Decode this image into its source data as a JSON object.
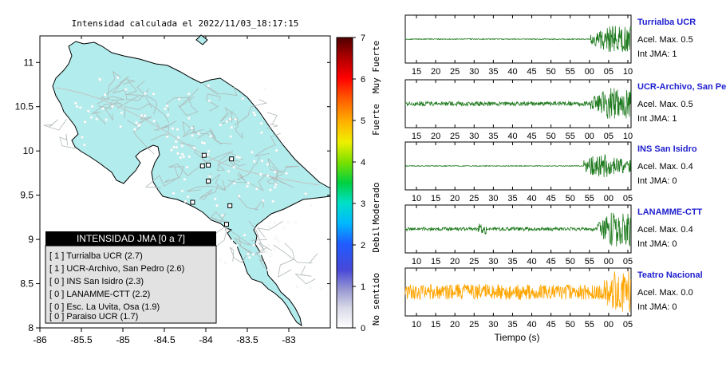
{
  "map": {
    "title": "Intensidad calculada el 2022/11/03_18:17:15",
    "x_ticks": [
      "-86",
      "-85.5",
      "-85",
      "-84.5",
      "-84",
      "-83.5",
      "-83"
    ],
    "y_ticks": [
      "11",
      "10.5",
      "10",
      "9.5",
      "9",
      "8.5",
      "8"
    ],
    "xlim": [
      -86.0,
      -82.5
    ],
    "ylim": [
      8.0,
      11.3
    ],
    "land_color": "#b2ecec",
    "station_markers": [
      {
        "lon": -84.02,
        "lat": 9.95
      },
      {
        "lon": -83.97,
        "lat": 9.84
      },
      {
        "lon": -84.04,
        "lat": 9.83
      },
      {
        "lon": -83.69,
        "lat": 9.91
      },
      {
        "lon": -83.97,
        "lat": 9.66
      },
      {
        "lon": -83.71,
        "lat": 9.38
      },
      {
        "lon": -83.75,
        "lat": 9.17
      },
      {
        "lon": -84.16,
        "lat": 9.42
      }
    ]
  },
  "legend_box": {
    "title": "INTENSIDAD JMA [0 a 7]",
    "items": [
      "[ 1 ] Turrialba UCR (2.7)",
      "[ 1 ] UCR-Archivo, San Pedro (2.6)",
      "[ 0 ] INS San Isidro (2.3)",
      "[ 0 ] LANAMME-CTT (2.2)",
      "[ 0 ] Esc. La Uvita, Osa (1.9)",
      "[ 0 ] Paraiso UCR (1.7)"
    ]
  },
  "colorbar": {
    "ticks": [
      "7",
      "6",
      "5",
      "4",
      "3",
      "2",
      "1",
      "0"
    ],
    "labels": [
      "Muy Fuerte",
      "Fuerte",
      "Moderado",
      "Debil",
      "No sentido"
    ],
    "range": [
      0,
      7
    ]
  },
  "chart_data": {
    "type": "line",
    "xlabel": "Tiempo (s)",
    "series": [
      {
        "name": "Turrialba UCR",
        "acel_label": "Acel. Max. 0.5",
        "jma_label": "Int JMA: 1",
        "ticks": [
          "15",
          "20",
          "25",
          "30",
          "35",
          "40",
          "45",
          "50",
          "55",
          "00",
          "05",
          "10"
        ],
        "color": "#1e7a1e",
        "event_start": 0.82,
        "noise_amp": 0.02,
        "event_amp": 0.6
      },
      {
        "name": "UCR-Archivo, San Pedro",
        "acel_label": "Acel. Max. 0.5",
        "jma_label": "Int JMA: 1",
        "ticks": [
          "15",
          "20",
          "25",
          "30",
          "35",
          "40",
          "45",
          "50",
          "55",
          "00",
          "05",
          "10"
        ],
        "color": "#1e7a1e",
        "event_start": 0.82,
        "noise_amp": 0.1,
        "event_amp": 0.7
      },
      {
        "name": "INS San Isidro",
        "acel_label": "Acel. Max. 0.4",
        "jma_label": "Int JMA: 0",
        "ticks": [
          "10",
          "15",
          "20",
          "25",
          "30",
          "35",
          "40",
          "45",
          "50",
          "55",
          "00",
          "05"
        ],
        "color": "#1e7a1e",
        "event_start": 0.79,
        "noise_amp": 0.02,
        "event_amp": 0.9
      },
      {
        "name": "LANAMME-CTT",
        "acel_label": "Acel. Max. 0.4",
        "jma_label": "Int JMA: 0",
        "ticks": [
          "10",
          "15",
          "20",
          "25",
          "30",
          "35",
          "40",
          "45",
          "50",
          "55",
          "00",
          "05"
        ],
        "color": "#1e7a1e",
        "event_start": 0.85,
        "noise_amp": 0.08,
        "event_amp": 0.8
      },
      {
        "name": "Teatro Nacional",
        "acel_label": "Acel. Max. 0.0",
        "jma_label": "Int JMA: 0",
        "ticks": [
          "10",
          "15",
          "20",
          "25",
          "30",
          "35",
          "40",
          "45",
          "50",
          "55",
          "00",
          "05"
        ],
        "color": "#ffa500",
        "event_start": 0.86,
        "noise_amp": 0.35,
        "event_amp": 0.95
      }
    ]
  }
}
